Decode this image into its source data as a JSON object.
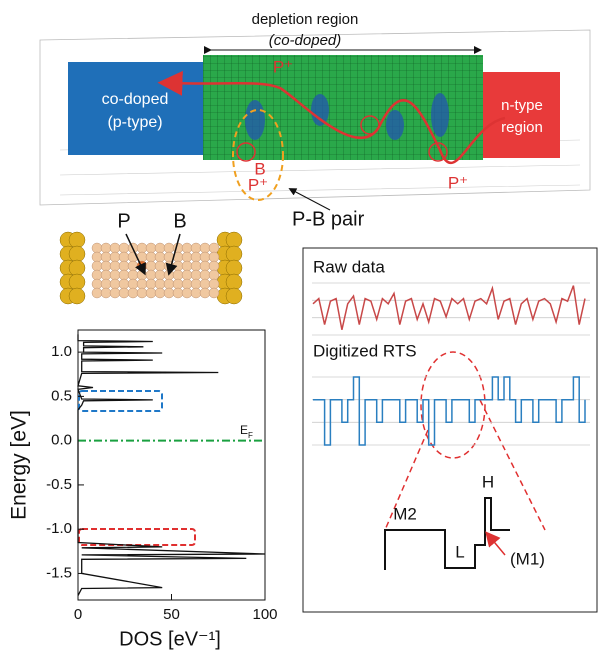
{
  "top_panel": {
    "depletion_label": "depletion region",
    "codoped_label": "(co-doped)",
    "left_box": [
      "co-doped",
      "(p-type)"
    ],
    "right_box": [
      "n-type",
      "region"
    ],
    "p_plus_labels": [
      "P⁺",
      "P⁺",
      "P⁺"
    ],
    "b_label": "B",
    "pair_label": "P-B pair"
  },
  "atom_panel": {
    "p_label": "P",
    "b_label": "B"
  },
  "dos_plot": {
    "type": "line",
    "ylabel": "Energy [eV]",
    "xlabel": "DOS [eV⁻¹]",
    "xlim": [
      0,
      100
    ],
    "xticks": [
      0,
      50,
      100
    ],
    "ylim": [
      -1.8,
      1.25
    ],
    "yticks": [
      {
        "value": 1,
        "label": "1.0"
      },
      0.5,
      {
        "value": 0,
        "label": "0.0"
      },
      -0.5,
      {
        "value": -1,
        "label": "-1.0"
      },
      -1.5
    ],
    "fermi_level": 0,
    "fermi_label": "E",
    "fermi_sub": "F",
    "energy": [
      1.2,
      1.13,
      1.12,
      1.11,
      1.07,
      1.06,
      1.05,
      1.0,
      0.99,
      0.98,
      0.92,
      0.91,
      0.9,
      0.78,
      0.77,
      0.76,
      0.62,
      0.6,
      0.58,
      0.47,
      0.46,
      0.45,
      0.4,
      0.35,
      -1.15,
      -1.2,
      -1.21,
      -1.28,
      -1.29,
      -1.33,
      -1.34,
      -1.5,
      -1.66,
      -1.67,
      -1.75
    ],
    "dos": [
      0,
      0,
      40,
      3,
      3,
      35,
      3,
      3,
      45,
      2,
      2,
      40,
      2,
      2,
      75,
      2,
      0,
      8,
      0,
      2,
      40,
      3,
      2,
      0,
      0,
      45,
      2,
      100,
      2,
      90,
      2,
      2,
      45,
      2,
      0
    ]
  },
  "rts_panel": {
    "raw_label": "Raw data",
    "digitized_label": "Digitized RTS",
    "raw_values": [
      0.6,
      0.7,
      0.2,
      0.65,
      0.7,
      0.1,
      0.6,
      0.75,
      0.2,
      0.7,
      0.65,
      0.3,
      0.7,
      0.6,
      0.8,
      0.2,
      0.65,
      0.7,
      0.3,
      0.6,
      0.25,
      0.7,
      0.65,
      0.35,
      0.7,
      0.6,
      0.7,
      0.3,
      0.65,
      0.7,
      0.6,
      0.9,
      0.3,
      0.65,
      0.7,
      0.2,
      0.6,
      0.7,
      0.3,
      0.65,
      0.7,
      0.6,
      0.25,
      0.7,
      0.65,
      0.95,
      0.2,
      0.7
    ],
    "digitized_values": [
      2,
      2,
      0,
      2,
      2,
      1,
      2,
      3,
      0,
      2,
      2,
      1,
      2,
      2,
      2,
      1,
      2,
      2,
      1,
      2,
      0,
      2,
      2,
      1,
      2,
      2,
      2,
      1,
      2,
      2,
      2,
      3,
      2,
      3,
      2,
      1,
      2,
      2,
      1,
      2,
      2,
      2,
      1,
      2,
      2,
      3,
      1,
      2
    ],
    "levels": [
      "M2",
      "L",
      "H",
      "(M1)"
    ]
  }
}
